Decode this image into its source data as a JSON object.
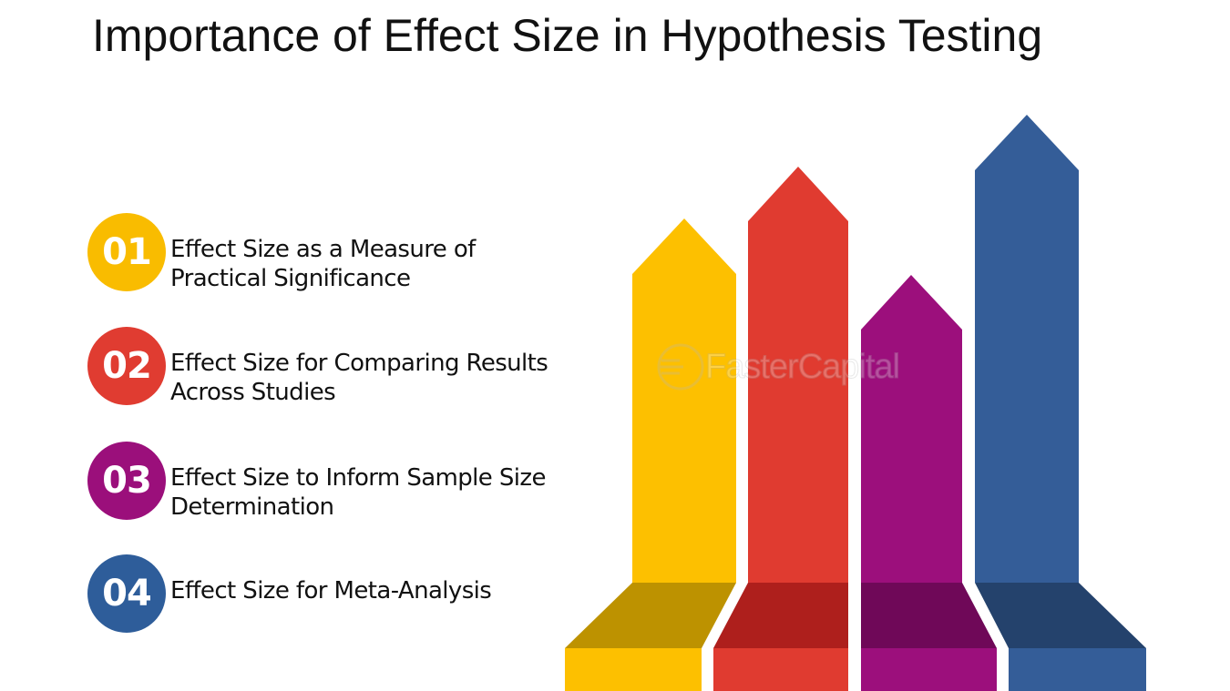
{
  "title": "Importance of Effect Size in Hypothesis Testing",
  "items": [
    {
      "number": "01",
      "lines": [
        "Effect Size as a Measure of",
        "Practical Significance"
      ],
      "color": "#F9BC00"
    },
    {
      "number": "02",
      "lines": [
        "Effect Size for Comparing Results",
        "Across Studies"
      ],
      "color": "#E03C31"
    },
    {
      "number": "03",
      "lines": [
        "Effect Size to Inform Sample Size",
        "Determination"
      ],
      "color": "#9B0F7B"
    },
    {
      "number": "04",
      "lines": [
        "Effect Size for Meta-Analysis"
      ],
      "color": "#2E5D9A"
    }
  ],
  "arrow_colors": {
    "yellow": "#FDC000",
    "yellow_dark": "#BD9200",
    "red": "#E03B30",
    "red_dark": "#AE1F1C",
    "purple": "#9C0F7C",
    "purple_dark": "#6F0858",
    "blue": "#345D98",
    "blue_dark": "#24426C"
  },
  "watermark": {
    "text": "FasterCapital",
    "icon": "fastercapital-logo-icon"
  }
}
